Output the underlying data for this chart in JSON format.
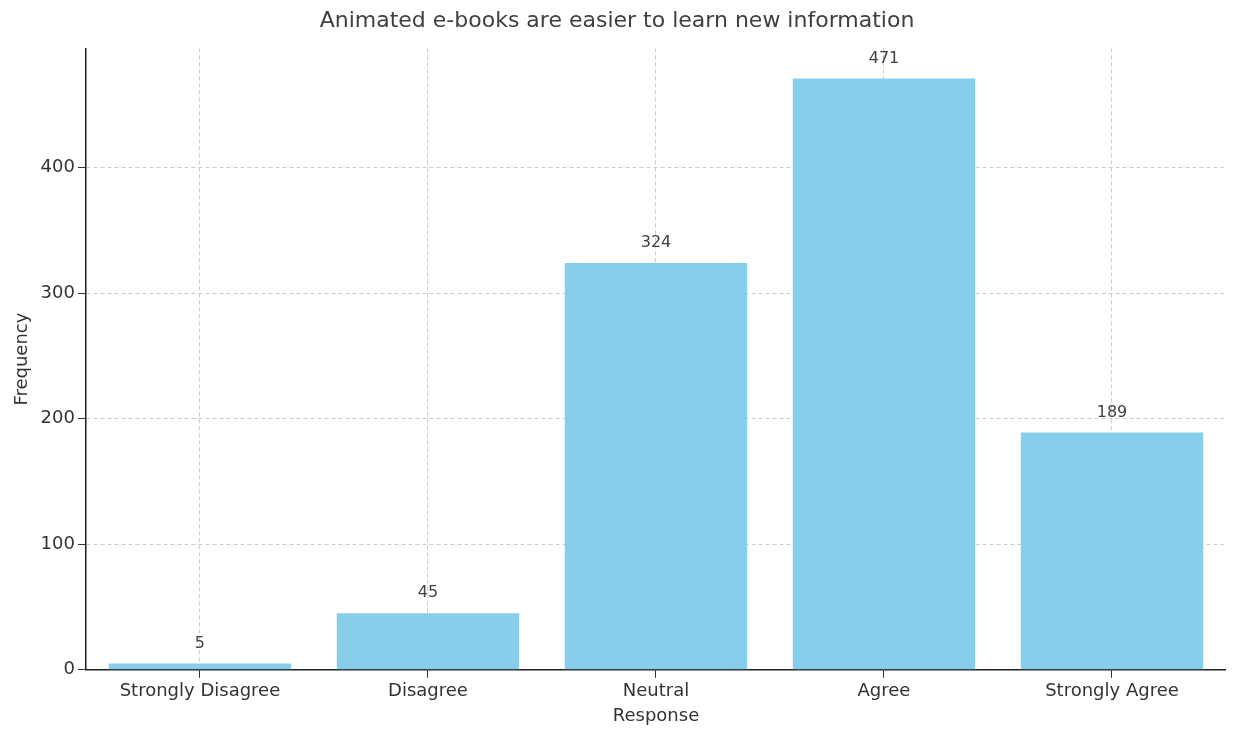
{
  "chart_data": {
    "type": "bar",
    "title": "Animated e-books are easier to learn new information",
    "xlabel": "Response",
    "ylabel": "Frequency",
    "categories": [
      "Strongly Disagree",
      "Disagree",
      "Neutral",
      "Agree",
      "Strongly Agree"
    ],
    "values": [
      5,
      45,
      324,
      471,
      189
    ],
    "color": "#87ceeb",
    "ylim": [
      0,
      495
    ],
    "yticks": [
      0,
      100,
      200,
      300,
      400
    ],
    "grid": true,
    "data_labels": true
  }
}
